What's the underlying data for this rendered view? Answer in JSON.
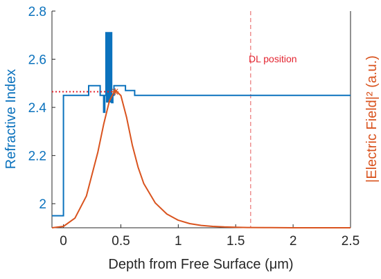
{
  "chart_data": {
    "type": "line",
    "xlabel": "Depth from Free Surface (μm)",
    "ylabel_left": "Refractive Index",
    "ylabel_right": "|Electric Field|² (a.u.)",
    "xlim": [
      -0.1,
      2.5
    ],
    "ylim_left": [
      1.9,
      2.8
    ],
    "x_ticks": [
      "0",
      "0.5",
      "1",
      "1.5",
      "2",
      "2.5"
    ],
    "y_ticks_left": [
      "2",
      "2.2",
      "2.4",
      "2.6",
      "2.8"
    ],
    "grid": false,
    "colors": {
      "refractive_index": "#0b72bd",
      "electric_field": "#d9531e",
      "dl_line": "#ee8f8f",
      "annotation": "#e3232f",
      "axis": "#262626"
    },
    "annotation": {
      "text": "DL position",
      "x": 1.63
    },
    "series": [
      {
        "axis": "left",
        "style": "step",
        "x": [
          -0.1,
          0.0,
          0.0,
          0.22,
          0.22,
          0.32,
          0.32,
          0.35,
          0.35,
          0.36,
          0.36,
          0.37,
          0.37,
          0.42,
          0.42,
          0.43,
          0.43,
          0.44,
          0.44,
          0.54,
          0.54,
          0.62,
          0.62,
          2.5
        ],
        "y": [
          1.95,
          1.95,
          2.45,
          2.45,
          2.49,
          2.49,
          2.45,
          2.45,
          2.38,
          2.38,
          2.45,
          2.45,
          2.71,
          2.71,
          2.42,
          2.42,
          2.45,
          2.45,
          2.49,
          2.49,
          2.47,
          2.47,
          2.45,
          2.45
        ]
      },
      {
        "axis": "right",
        "style": "line",
        "x": [
          -0.1,
          0.0,
          0.1,
          0.2,
          0.3,
          0.35,
          0.4,
          0.45,
          0.5,
          0.55,
          0.6,
          0.65,
          0.7,
          0.8,
          0.9,
          1.0,
          1.1,
          1.2,
          1.3,
          1.4,
          1.5,
          1.6,
          1.8,
          2.0,
          2.5
        ],
        "y": [
          0.0,
          0.01,
          0.07,
          0.23,
          0.55,
          0.75,
          0.92,
          1.0,
          0.96,
          0.8,
          0.6,
          0.44,
          0.32,
          0.18,
          0.1,
          0.055,
          0.03,
          0.017,
          0.01,
          0.006,
          0.004,
          0.002,
          0.001,
          0.0,
          0.0
        ]
      }
    ],
    "reference_line": {
      "axis": "left",
      "y": 2.465,
      "x": [
        -0.1,
        0.44
      ],
      "style": "dotted",
      "marker_x": 0.45
    }
  }
}
